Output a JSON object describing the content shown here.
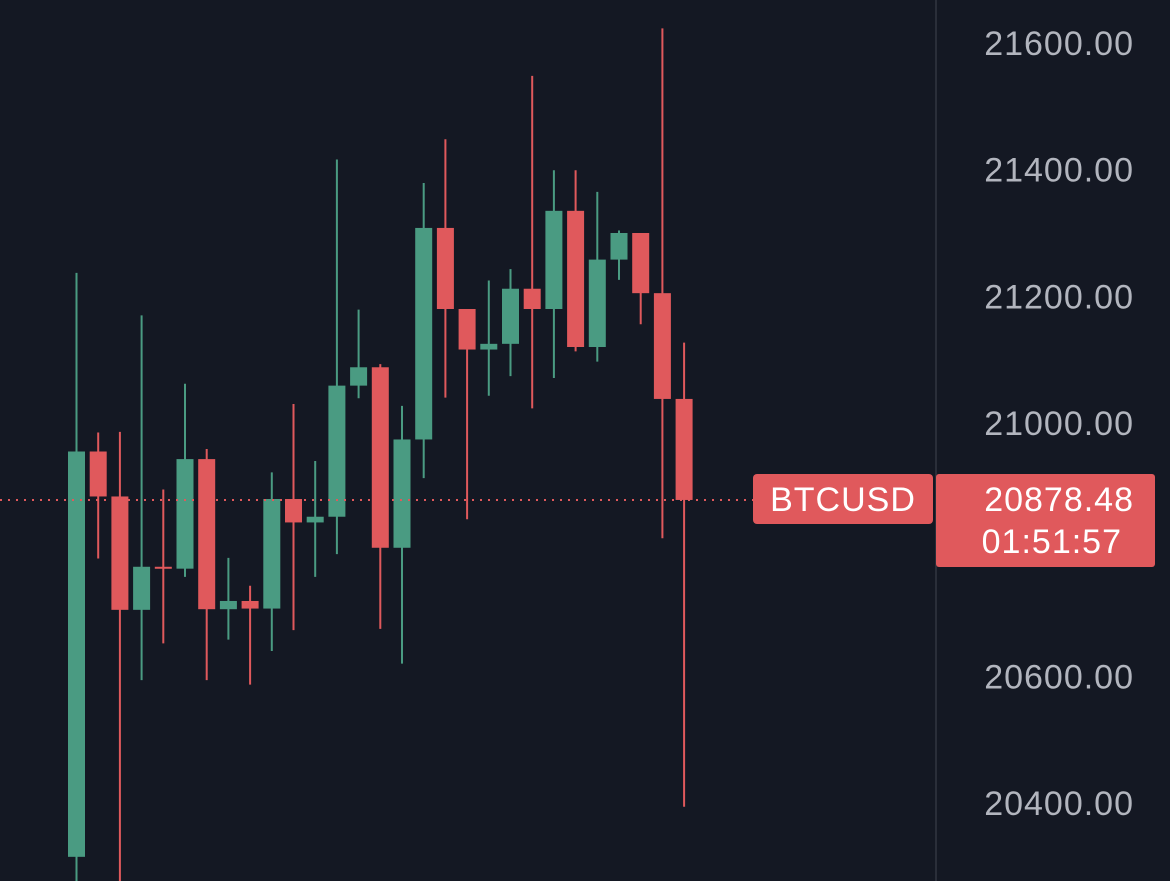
{
  "colors": {
    "background": "#141823",
    "up": "#4a9b82",
    "down": "#e0595c",
    "axis_text": "#b2b5be",
    "axis_border": "#2a2e39",
    "price_line": "#e0595c"
  },
  "chart_data": {
    "type": "candlestick",
    "symbol": "BTCUSD",
    "last_price": 20878.48,
    "last_price_text": "20878.48",
    "countdown": "01:51:57",
    "price_scale": "right",
    "y_ticks": [
      21600,
      21400,
      21200,
      21000,
      20600,
      20400
    ],
    "y_tick_labels": [
      "21600.00",
      "21400.00",
      "21200.00",
      "21000.00",
      "20600.00",
      "20400.00"
    ],
    "ylim": [
      20263,
      21640
    ],
    "grid": false,
    "candles": [
      {
        "o": 20315,
        "h": 21237,
        "l": 20263,
        "c": 20955
      },
      {
        "o": 20955,
        "h": 20985,
        "l": 20786,
        "c": 20884
      },
      {
        "o": 20884,
        "h": 20986,
        "l": 20263,
        "c": 20705
      },
      {
        "o": 20705,
        "h": 21170,
        "l": 20594,
        "c": 20773
      },
      {
        "o": 20773,
        "h": 20895,
        "l": 20652,
        "c": 20770
      },
      {
        "o": 20770,
        "h": 21062,
        "l": 20757,
        "c": 20943
      },
      {
        "o": 20943,
        "h": 20959,
        "l": 20594,
        "c": 20706
      },
      {
        "o": 20706,
        "h": 20787,
        "l": 20658,
        "c": 20719
      },
      {
        "o": 20719,
        "h": 20743,
        "l": 20587,
        "c": 20707
      },
      {
        "o": 20707,
        "h": 20922,
        "l": 20640,
        "c": 20880
      },
      {
        "o": 20880,
        "h": 21030,
        "l": 20673,
        "c": 20843
      },
      {
        "o": 20843,
        "h": 20940,
        "l": 20757,
        "c": 20852
      },
      {
        "o": 20852,
        "h": 21416,
        "l": 20793,
        "c": 21059
      },
      {
        "o": 21059,
        "h": 21179,
        "l": 21039,
        "c": 21088
      },
      {
        "o": 21088,
        "h": 21093,
        "l": 20675,
        "c": 20803
      },
      {
        "o": 20803,
        "h": 21027,
        "l": 20620,
        "c": 20974
      },
      {
        "o": 20974,
        "h": 21379,
        "l": 20913,
        "c": 21308
      },
      {
        "o": 21308,
        "h": 21448,
        "l": 21040,
        "c": 21180
      },
      {
        "o": 21180,
        "h": 21180,
        "l": 20848,
        "c": 21116
      },
      {
        "o": 21116,
        "h": 21225,
        "l": 21043,
        "c": 21125
      },
      {
        "o": 21125,
        "h": 21243,
        "l": 21074,
        "c": 21212
      },
      {
        "o": 21212,
        "h": 21548,
        "l": 21023,
        "c": 21180
      },
      {
        "o": 21180,
        "h": 21399,
        "l": 21071,
        "c": 21335
      },
      {
        "o": 21335,
        "h": 21399,
        "l": 21113,
        "c": 21120
      },
      {
        "o": 21120,
        "h": 21365,
        "l": 21097,
        "c": 21258
      },
      {
        "o": 21258,
        "h": 21304,
        "l": 21226,
        "c": 21300
      },
      {
        "o": 21300,
        "h": 21300,
        "l": 21156,
        "c": 21205
      },
      {
        "o": 21205,
        "h": 21623,
        "l": 20818,
        "c": 21038
      },
      {
        "o": 21038,
        "h": 21127,
        "l": 20394,
        "c": 20878.48
      }
    ]
  }
}
